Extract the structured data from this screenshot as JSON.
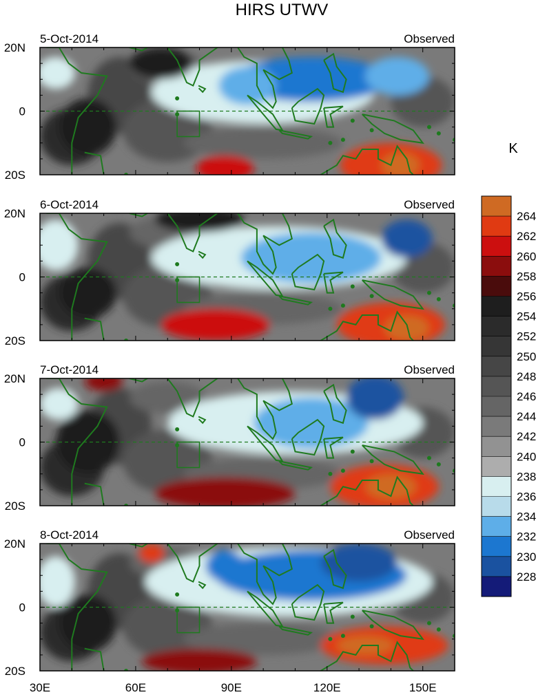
{
  "chart_data": {
    "type": "heatmap",
    "title": "HIRS UTWV",
    "colorbar": {
      "unit": "K",
      "levels": [
        264,
        262,
        260,
        258,
        256,
        254,
        252,
        250,
        248,
        246,
        244,
        242,
        240,
        238,
        236,
        234,
        232,
        230,
        228
      ],
      "colors": [
        "#cf6a23",
        "#e03a12",
        "#cc0f0f",
        "#8b0d0d",
        "#4a0c0c",
        "#1e1e1e",
        "#2b2b2b",
        "#363636",
        "#464646",
        "#555555",
        "#656565",
        "#7a7a7a",
        "#929292",
        "#adadad",
        "#d8eff0",
        "#b8dbea",
        "#5eaee8",
        "#1c77d0",
        "#1a52a0",
        "#141b78"
      ]
    },
    "x_ticks": [
      "30E",
      "60E",
      "90E",
      "120E",
      "150E"
    ],
    "x_tick_values": [
      30,
      60,
      90,
      120,
      150
    ],
    "xlim": [
      30,
      160
    ],
    "y_ticks": [
      "20N",
      "0",
      "20S"
    ],
    "y_tick_values": [
      20,
      0,
      -20
    ],
    "ylim": [
      -20,
      20
    ],
    "panels": [
      {
        "date": "5-Oct-2014",
        "label": "Observed",
        "features": [
          {
            "lon": 115,
            "lat": 10,
            "rx": 25,
            "ry": 7,
            "level": 230
          },
          {
            "lon": 95,
            "lat": 8,
            "rx": 9,
            "ry": 6,
            "level": 232
          },
          {
            "lon": 142,
            "lat": 11,
            "rx": 10,
            "ry": 6,
            "level": 232
          },
          {
            "lon": 100,
            "lat": 6,
            "rx": 35,
            "ry": 10,
            "level": 236
          },
          {
            "lon": 35,
            "lat": 12,
            "rx": 6,
            "ry": 5,
            "level": 236
          },
          {
            "lon": 45,
            "lat": -5,
            "rx": 9,
            "ry": 9,
            "level": 254
          },
          {
            "lon": 68,
            "lat": 15,
            "rx": 10,
            "ry": 5,
            "level": 254
          },
          {
            "lon": 140,
            "lat": -17,
            "rx": 16,
            "ry": 7,
            "level": 262
          },
          {
            "lon": 143,
            "lat": -17,
            "rx": 6,
            "ry": 4,
            "level": 264
          },
          {
            "lon": 88,
            "lat": -18,
            "rx": 9,
            "ry": 4,
            "level": 260
          }
        ]
      },
      {
        "date": "6-Oct-2014",
        "label": "Observed",
        "features": [
          {
            "lon": 145,
            "lat": 12,
            "rx": 8,
            "ry": 6,
            "level": 228
          },
          {
            "lon": 115,
            "lat": 6,
            "rx": 22,
            "ry": 8,
            "level": 232
          },
          {
            "lon": 105,
            "lat": 6,
            "rx": 40,
            "ry": 10,
            "level": 236
          },
          {
            "lon": 35,
            "lat": 10,
            "rx": 7,
            "ry": 8,
            "level": 236
          },
          {
            "lon": 45,
            "lat": -5,
            "rx": 9,
            "ry": 8,
            "level": 254
          },
          {
            "lon": 80,
            "lat": 18,
            "rx": 14,
            "ry": 4,
            "level": 254
          },
          {
            "lon": 85,
            "lat": -15,
            "rx": 17,
            "ry": 5,
            "level": 260
          },
          {
            "lon": 140,
            "lat": -15,
            "rx": 17,
            "ry": 7,
            "level": 262
          },
          {
            "lon": 145,
            "lat": -16,
            "rx": 7,
            "ry": 4,
            "level": 264
          }
        ]
      },
      {
        "date": "7-Oct-2014",
        "label": "Observed",
        "features": [
          {
            "lon": 135,
            "lat": 14,
            "rx": 9,
            "ry": 7,
            "level": 228
          },
          {
            "lon": 115,
            "lat": 6,
            "rx": 18,
            "ry": 8,
            "level": 232
          },
          {
            "lon": 110,
            "lat": 6,
            "rx": 40,
            "ry": 10,
            "level": 236
          },
          {
            "lon": 36,
            "lat": 12,
            "rx": 6,
            "ry": 5,
            "level": 236
          },
          {
            "lon": 45,
            "lat": 0,
            "rx": 10,
            "ry": 10,
            "level": 254
          },
          {
            "lon": 88,
            "lat": -16,
            "rx": 22,
            "ry": 5,
            "level": 258
          },
          {
            "lon": 138,
            "lat": -14,
            "rx": 17,
            "ry": 7,
            "level": 262
          },
          {
            "lon": 140,
            "lat": -14,
            "rx": 8,
            "ry": 4,
            "level": 264
          },
          {
            "lon": 50,
            "lat": 19,
            "rx": 6,
            "ry": 3,
            "level": 258
          }
        ]
      },
      {
        "date": "8-Oct-2014",
        "label": "Observed",
        "features": [
          {
            "lon": 130,
            "lat": 14,
            "rx": 12,
            "ry": 6,
            "level": 228
          },
          {
            "lon": 115,
            "lat": 10,
            "rx": 30,
            "ry": 8,
            "level": 230
          },
          {
            "lon": 88,
            "lat": 13,
            "rx": 6,
            "ry": 5,
            "level": 230
          },
          {
            "lon": 108,
            "lat": 8,
            "rx": 45,
            "ry": 11,
            "level": 236
          },
          {
            "lon": 35,
            "lat": 8,
            "rx": 6,
            "ry": 8,
            "level": 236
          },
          {
            "lon": 45,
            "lat": -5,
            "rx": 9,
            "ry": 9,
            "level": 254
          },
          {
            "lon": 65,
            "lat": 17,
            "rx": 4,
            "ry": 3,
            "level": 262
          },
          {
            "lon": 80,
            "lat": -17,
            "rx": 18,
            "ry": 4,
            "level": 258
          },
          {
            "lon": 138,
            "lat": -12,
            "rx": 20,
            "ry": 6,
            "level": 262
          },
          {
            "lon": 132,
            "lat": -12,
            "rx": 9,
            "ry": 3,
            "level": 264
          }
        ]
      }
    ]
  }
}
